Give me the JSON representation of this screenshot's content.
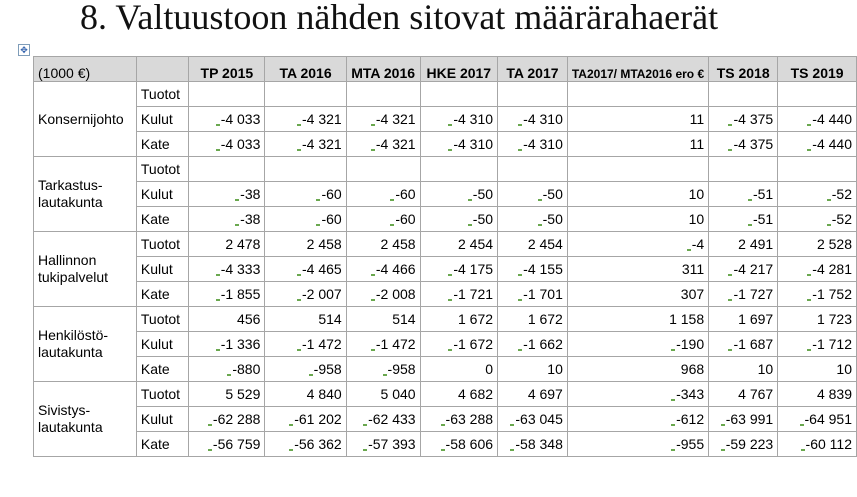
{
  "title": "8. Valtuustoon nähden sitovat määrärahaerät",
  "table": {
    "unit_label": "(1000 €)",
    "columns": [
      "TP 2015",
      "TA 2016",
      "MTA 2016",
      "HKE 2017",
      "TA 2017",
      "TA2017/ MTA2016 ero €",
      "TS 2018",
      "TS 2019"
    ],
    "sections": [
      {
        "name": "Konsernijohto",
        "rows": [
          {
            "label": "Tuotot",
            "values": [
              "",
              "",
              "",
              "",
              "",
              "",
              "",
              ""
            ]
          },
          {
            "label": "Kulut",
            "values": [
              "-4 033",
              "-4 321",
              "-4 321",
              "-4 310",
              "-4 310",
              "11",
              "-4 375",
              "-4 440"
            ]
          },
          {
            "label": "Kate",
            "values": [
              "-4 033",
              "-4 321",
              "-4 321",
              "-4 310",
              "-4 310",
              "11",
              "-4 375",
              "-4 440"
            ]
          }
        ]
      },
      {
        "name": "Tarkastus-\nlautakunta",
        "rows": [
          {
            "label": "Tuotot",
            "values": [
              "",
              "",
              "",
              "",
              "",
              "",
              "",
              ""
            ]
          },
          {
            "label": "Kulut",
            "values": [
              "-38",
              "-60",
              "-60",
              "-50",
              "-50",
              "10",
              "-51",
              "-52"
            ]
          },
          {
            "label": "Kate",
            "values": [
              "-38",
              "-60",
              "-60",
              "-50",
              "-50",
              "10",
              "-51",
              "-52"
            ]
          }
        ]
      },
      {
        "name": "Hallinnon\ntukipalvelut",
        "rows": [
          {
            "label": "Tuotot",
            "values": [
              "2 478",
              "2 458",
              "2 458",
              "2 454",
              "2 454",
              "-4",
              "2 491",
              "2 528"
            ]
          },
          {
            "label": "Kulut",
            "values": [
              "-4 333",
              "-4 465",
              "-4 466",
              "-4 175",
              "-4 155",
              "311",
              "-4 217",
              "-4 281"
            ]
          },
          {
            "label": "Kate",
            "values": [
              "-1 855",
              "-2 007",
              "-2 008",
              "-1 721",
              "-1 701",
              "307",
              "-1 727",
              "-1 752"
            ]
          }
        ]
      },
      {
        "name": "Henkilöstö-\nlautakunta",
        "rows": [
          {
            "label": "Tuotot",
            "values": [
              "456",
              "514",
              "514",
              "1 672",
              "1 672",
              "1 158",
              "1 697",
              "1 723"
            ]
          },
          {
            "label": "Kulut",
            "values": [
              "-1 336",
              "-1 472",
              "-1 472",
              "-1 672",
              "-1 662",
              "-190",
              "-1 687",
              "-1 712"
            ]
          },
          {
            "label": "Kate",
            "values": [
              "-880",
              "-958",
              "-958",
              "0",
              "10",
              "968",
              "10",
              "10"
            ]
          }
        ]
      },
      {
        "name": "Sivistys-\nlautakunta",
        "rows": [
          {
            "label": "Tuotot",
            "values": [
              "5 529",
              "4 840",
              "5 040",
              "4 682",
              "4 697",
              "-343",
              "4 767",
              "4 839"
            ]
          },
          {
            "label": "Kulut",
            "values": [
              "-62 288",
              "-61 202",
              "-62 433",
              "-63 288",
              "-63 045",
              "-612",
              "-63 991",
              "-64 951"
            ]
          },
          {
            "label": "Kate",
            "values": [
              "-56 759",
              "-56 362",
              "-57 393",
              "-58 606",
              "-58 348",
              "-955",
              "-59 223",
              "-60 112"
            ]
          }
        ]
      }
    ]
  }
}
